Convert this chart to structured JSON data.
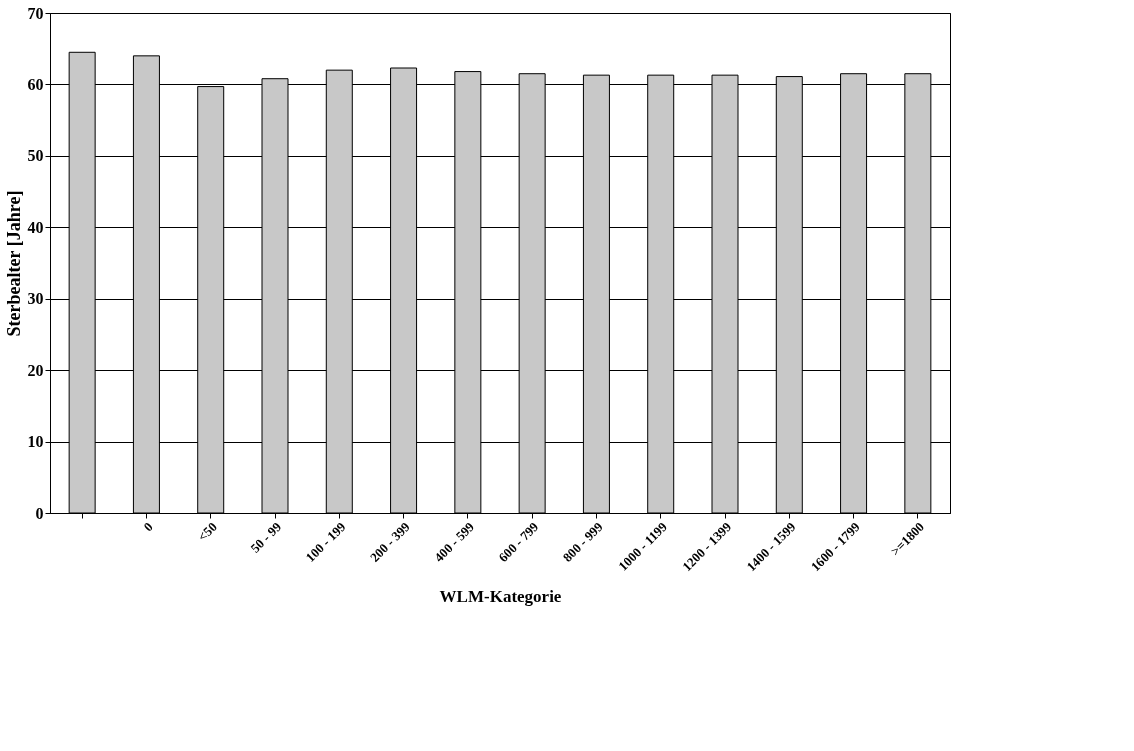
{
  "chart_data": {
    "type": "bar",
    "xlabel": "WLM-Kategorie",
    "ylabel": "Sterbealter [Jahre]",
    "categories": [
      null,
      "0",
      "<50",
      "50 - 99",
      "100 - 199",
      "200 - 399",
      "400 - 599",
      "600 - 799",
      "800 - 999",
      "1000 - 1199",
      "1200 - 1399",
      "1400 - 1599",
      "1600 - 1799",
      ">=1800"
    ],
    "values": [
      64.5,
      64,
      59.7,
      60.8,
      62,
      62.3,
      61.8,
      61.5,
      61.3,
      61.3,
      61.3,
      61.1,
      61.5,
      61.5
    ],
    "color": "#c8c8c8",
    "ylim": [
      0,
      70
    ],
    "yticks": [
      0,
      10,
      20,
      30,
      40,
      50,
      60,
      70
    ],
    "grid": "y"
  }
}
